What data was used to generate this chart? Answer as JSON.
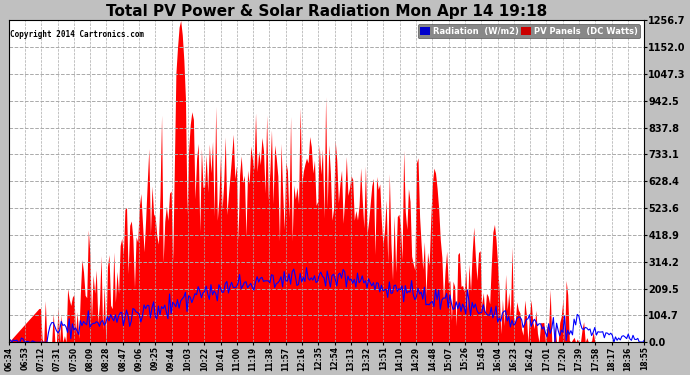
{
  "title": "Total PV Power & Solar Radiation Mon Apr 14 19:18",
  "copyright": "Copyright 2014 Cartronics.com",
  "ylabel_right_values": [
    0.0,
    104.7,
    209.5,
    314.2,
    418.9,
    523.6,
    628.4,
    733.1,
    837.8,
    942.5,
    1047.3,
    1152.0,
    1256.7
  ],
  "ymax": 1256.7,
  "ymin": 0.0,
  "x_labels": [
    "06:34",
    "06:53",
    "07:12",
    "07:31",
    "07:50",
    "08:09",
    "08:28",
    "08:47",
    "09:06",
    "09:25",
    "09:44",
    "10:03",
    "10:22",
    "10:41",
    "11:00",
    "11:19",
    "11:38",
    "11:57",
    "12:16",
    "12:35",
    "12:54",
    "13:13",
    "13:32",
    "13:51",
    "14:10",
    "14:29",
    "14:48",
    "15:07",
    "15:26",
    "15:45",
    "16:04",
    "16:23",
    "16:42",
    "17:01",
    "17:20",
    "17:39",
    "17:58",
    "18:17",
    "18:36",
    "18:55"
  ],
  "bg_color": "#c0c0c0",
  "plot_bg_color": "#ffffff",
  "grid_color": "#aaaaaa",
  "red_fill_color": "#ff0000",
  "blue_line_color": "#0000ff",
  "title_fontsize": 11,
  "legend_radiation_bg": "#0000cc",
  "legend_pv_bg": "#cc0000",
  "legend_text_color": "white"
}
